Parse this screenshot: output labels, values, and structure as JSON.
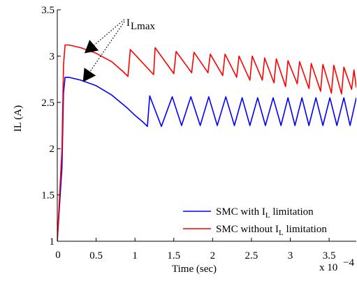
{
  "chart_data": {
    "type": "line",
    "title": "",
    "xlabel": "Time (sec)",
    "ylabel": "IL (A)",
    "x_multiplier_label": "x 10",
    "x_multiplier_exp": "−4",
    "xlim": [
      0,
      3.85
    ],
    "ylim": [
      1,
      3.5
    ],
    "xticks": [
      0,
      0.5,
      1,
      1.5,
      2,
      2.5,
      3,
      3.5
    ],
    "xtick_labels": [
      "0",
      "0.5",
      "1",
      "1.5",
      "2",
      "2.5",
      "3",
      "3.5"
    ],
    "yticks": [
      1,
      1.5,
      2,
      2.5,
      3,
      3.5
    ],
    "ytick_labels": [
      "1",
      "1.5",
      "2",
      "2.5",
      "3",
      "3.5"
    ],
    "grid": false,
    "legend_position": "bottom-right",
    "annotation": {
      "text": "I",
      "subscript": "Lmax",
      "targets": [
        [
          0.35,
          3.03
        ],
        [
          0.33,
          2.72
        ]
      ]
    },
    "series": [
      {
        "name": "SMC with I",
        "name_subscript": "L",
        "name_suffix": " limitation",
        "color": "#0000ff",
        "x": [
          0,
          0.06,
          0.08,
          0.1,
          0.15,
          0.3,
          0.5,
          0.7,
          0.9,
          1.0,
          1.1,
          1.16,
          1.16,
          1.19,
          1.19,
          1.34,
          1.34,
          1.48,
          1.48,
          1.6,
          1.6,
          1.72,
          1.72,
          1.84,
          1.84,
          1.95,
          1.95,
          2.06,
          2.06,
          2.17,
          2.17,
          2.28,
          2.28,
          2.38,
          2.38,
          2.48,
          2.48,
          2.58,
          2.58,
          2.68,
          2.68,
          2.78,
          2.78,
          2.88,
          2.88,
          2.97,
          2.97,
          3.06,
          3.06,
          3.15,
          3.15,
          3.24,
          3.24,
          3.33,
          3.33,
          3.42,
          3.42,
          3.51,
          3.51,
          3.6,
          3.6,
          3.69,
          3.69,
          3.77,
          3.77,
          3.85
        ],
        "y": [
          1.0,
          1.8,
          2.6,
          2.77,
          2.77,
          2.74,
          2.68,
          2.58,
          2.44,
          2.36,
          2.29,
          2.24,
          2.24,
          2.57,
          2.57,
          2.24,
          2.24,
          2.56,
          2.56,
          2.25,
          2.25,
          2.56,
          2.56,
          2.25,
          2.25,
          2.56,
          2.56,
          2.25,
          2.25,
          2.56,
          2.56,
          2.25,
          2.25,
          2.55,
          2.55,
          2.25,
          2.25,
          2.55,
          2.55,
          2.25,
          2.25,
          2.55,
          2.55,
          2.25,
          2.25,
          2.55,
          2.55,
          2.25,
          2.25,
          2.55,
          2.55,
          2.25,
          2.25,
          2.55,
          2.55,
          2.25,
          2.25,
          2.55,
          2.55,
          2.25,
          2.25,
          2.55,
          2.55,
          2.25,
          2.25,
          2.55
        ]
      },
      {
        "name": "SMC without I",
        "name_subscript": "L",
        "name_suffix": " limitation",
        "color": "#ff0000",
        "x": [
          0,
          0.06,
          0.08,
          0.1,
          0.15,
          0.3,
          0.5,
          0.7,
          0.85,
          0.91,
          0.91,
          0.94,
          0.94,
          1.24,
          1.24,
          1.26,
          1.26,
          1.5,
          1.5,
          1.53,
          1.53,
          1.73,
          1.73,
          1.76,
          1.76,
          1.94,
          1.94,
          1.97,
          1.97,
          2.13,
          2.13,
          2.16,
          2.16,
          2.31,
          2.31,
          2.34,
          2.34,
          2.48,
          2.48,
          2.51,
          2.51,
          2.64,
          2.64,
          2.67,
          2.67,
          2.79,
          2.79,
          2.82,
          2.82,
          2.94,
          2.94,
          2.97,
          2.97,
          3.09,
          3.09,
          3.12,
          3.12,
          3.24,
          3.24,
          3.27,
          3.27,
          3.39,
          3.39,
          3.42,
          3.42,
          3.53,
          3.53,
          3.56,
          3.56,
          3.66,
          3.66,
          3.69,
          3.69,
          3.79,
          3.79,
          3.82,
          3.82,
          3.85
        ],
        "y": [
          1.0,
          2.0,
          2.9,
          3.12,
          3.12,
          3.09,
          3.03,
          2.94,
          2.83,
          2.78,
          2.78,
          3.07,
          3.07,
          2.8,
          2.8,
          3.09,
          3.09,
          2.81,
          2.81,
          3.05,
          3.05,
          2.82,
          2.82,
          3.04,
          3.04,
          2.82,
          2.82,
          3.02,
          3.02,
          2.79,
          2.79,
          3.02,
          3.02,
          2.77,
          2.77,
          3.0,
          3.0,
          2.74,
          2.74,
          3.0,
          3.0,
          2.74,
          2.74,
          2.98,
          2.98,
          2.71,
          2.71,
          2.97,
          2.97,
          2.67,
          2.67,
          2.95,
          2.95,
          2.7,
          2.7,
          2.94,
          2.94,
          2.65,
          2.65,
          2.92,
          2.92,
          2.62,
          2.62,
          2.91,
          2.91,
          2.6,
          2.6,
          2.9,
          2.9,
          2.59,
          2.59,
          2.88,
          2.88,
          2.64,
          2.64,
          2.85,
          2.85,
          2.66
        ]
      }
    ]
  }
}
